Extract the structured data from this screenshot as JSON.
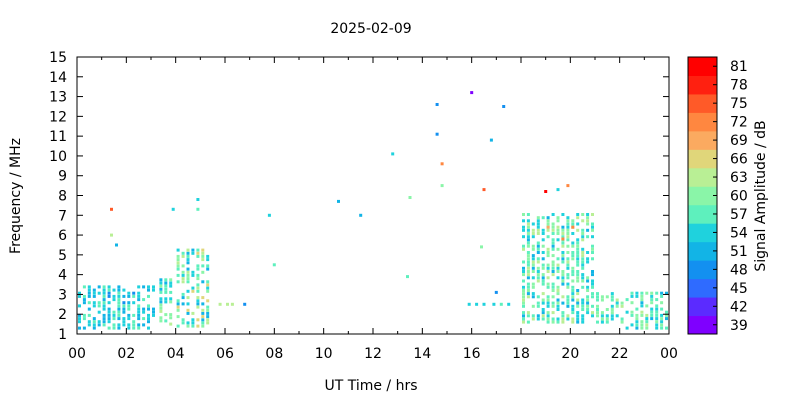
{
  "chart_data": {
    "type": "heatmap",
    "title": "2025-02-09",
    "xlabel": "UT Time / hrs",
    "ylabel": "Frequency / MHz",
    "colorbar_label": "Signal Amplitude / dB",
    "xlim": [
      0,
      24
    ],
    "ylim": [
      1,
      15
    ],
    "x_ticks": [
      "00",
      "02",
      "04",
      "06",
      "08",
      "10",
      "12",
      "14",
      "16",
      "18",
      "20",
      "22",
      "00"
    ],
    "y_ticks": [
      1,
      2,
      3,
      4,
      5,
      6,
      7,
      8,
      9,
      10,
      11,
      12,
      13,
      14,
      15
    ],
    "colorbar_ticks": [
      39,
      42,
      45,
      48,
      51,
      54,
      57,
      60,
      63,
      66,
      69,
      72,
      75,
      78,
      81
    ],
    "colorscale": [
      "#7f00ff",
      "#5b2bff",
      "#2f6bff",
      "#1390f0",
      "#12b4e6",
      "#1fd2dd",
      "#5ef0bd",
      "#8af5a8",
      "#b9ef95",
      "#e0d67a",
      "#fbaa60",
      "#ff8740",
      "#ff5a28",
      "#ff2010",
      "#ff0000"
    ],
    "grid": false,
    "scattered_points": [
      {
        "x": 16.0,
        "y": 13.2,
        "db": 40
      },
      {
        "x": 14.6,
        "y": 12.6,
        "db": 49
      },
      {
        "x": 17.3,
        "y": 12.5,
        "db": 49
      },
      {
        "x": 14.6,
        "y": 11.1,
        "db": 50
      },
      {
        "x": 16.8,
        "y": 10.8,
        "db": 51
      },
      {
        "x": 12.8,
        "y": 10.1,
        "db": 53
      },
      {
        "x": 14.8,
        "y": 9.6,
        "db": 70
      },
      {
        "x": 14.8,
        "y": 8.5,
        "db": 61
      },
      {
        "x": 16.5,
        "y": 8.3,
        "db": 73
      },
      {
        "x": 13.5,
        "y": 7.9,
        "db": 59
      },
      {
        "x": 10.6,
        "y": 7.7,
        "db": 51
      },
      {
        "x": 11.5,
        "y": 7.0,
        "db": 51
      },
      {
        "x": 7.8,
        "y": 7.0,
        "db": 54
      },
      {
        "x": 3.9,
        "y": 7.3,
        "db": 54
      },
      {
        "x": 4.9,
        "y": 7.8,
        "db": 54
      },
      {
        "x": 4.9,
        "y": 7.3,
        "db": 58
      },
      {
        "x": 1.4,
        "y": 7.3,
        "db": 74
      },
      {
        "x": 1.4,
        "y": 6.0,
        "db": 62
      },
      {
        "x": 1.6,
        "y": 5.5,
        "db": 51
      },
      {
        "x": 8.0,
        "y": 4.5,
        "db": 57
      },
      {
        "x": 13.4,
        "y": 3.9,
        "db": 58
      },
      {
        "x": 16.4,
        "y": 5.4,
        "db": 61
      },
      {
        "x": 19.0,
        "y": 8.2,
        "db": 80
      },
      {
        "x": 19.5,
        "y": 8.3,
        "db": 55
      },
      {
        "x": 19.9,
        "y": 8.5,
        "db": 70
      },
      {
        "x": 17.0,
        "y": 3.1,
        "db": 50
      },
      {
        "x": 6.8,
        "y": 2.5,
        "db": 49
      },
      {
        "x": 5.8,
        "y": 2.5,
        "db": 63
      },
      {
        "x": 6.1,
        "y": 2.5,
        "db": 63
      },
      {
        "x": 6.3,
        "y": 2.5,
        "db": 63
      },
      {
        "x": 15.9,
        "y": 2.5,
        "db": 54
      },
      {
        "x": 16.2,
        "y": 2.5,
        "db": 54
      },
      {
        "x": 16.5,
        "y": 2.5,
        "db": 55
      },
      {
        "x": 16.9,
        "y": 2.5,
        "db": 54
      },
      {
        "x": 17.2,
        "y": 2.5,
        "db": 56
      },
      {
        "x": 17.5,
        "y": 2.5,
        "db": 54
      },
      {
        "x": 19.1,
        "y": 6.4,
        "db": 69
      },
      {
        "x": 19.7,
        "y": 5.8,
        "db": 70
      },
      {
        "x": 20.1,
        "y": 6.4,
        "db": 72
      }
    ],
    "dense_bands": [
      {
        "x0": 0.0,
        "x1": 3.3,
        "ymin": 1.3,
        "ymax": 3.5,
        "db_range": [
          50,
          58
        ]
      },
      {
        "x0": 3.3,
        "x1": 4.0,
        "ymin": 1.5,
        "ymax": 4.0,
        "db_range": [
          51,
          62
        ]
      },
      {
        "x0": 4.0,
        "x1": 5.4,
        "ymin": 1.4,
        "ymax": 5.3,
        "db_range": [
          50,
          66
        ]
      },
      {
        "x0": 18.0,
        "x1": 21.0,
        "ymin": 1.6,
        "ymax": 7.2,
        "db_range": [
          52,
          63
        ]
      },
      {
        "x0": 21.0,
        "x1": 22.2,
        "ymin": 1.6,
        "ymax": 3.2,
        "db_range": [
          52,
          62
        ]
      },
      {
        "x0": 22.2,
        "x1": 24.0,
        "ymin": 1.3,
        "ymax": 3.2,
        "db_range": [
          52,
          62
        ]
      }
    ]
  }
}
